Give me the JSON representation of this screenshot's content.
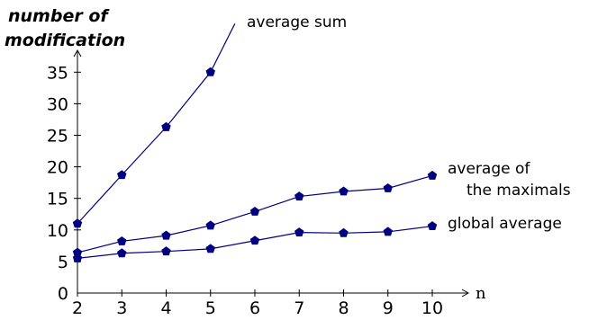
{
  "chart_data": {
    "type": "line",
    "ylabel_lines": [
      "number of",
      "modification"
    ],
    "xlabel": "n",
    "x": [
      2,
      3,
      4,
      5,
      6,
      7,
      8,
      9,
      10
    ],
    "ylim": [
      0,
      38
    ],
    "yticks": [
      0,
      5,
      10,
      15,
      20,
      25,
      30,
      35
    ],
    "grid": false,
    "line_color": "#000080",
    "marker_color": "#000080",
    "series": [
      {
        "name": "average sum",
        "label_lines": [
          "average sum"
        ],
        "x": [
          2,
          3,
          4,
          5
        ],
        "values": [
          11.0,
          18.7,
          26.3,
          35.0
        ],
        "extends_to": [
          5.55,
          42.7
        ]
      },
      {
        "name": "average of the maximals",
        "label_lines": [
          "average of",
          "the maximals"
        ],
        "x": [
          2,
          3,
          4,
          5,
          6,
          7,
          8,
          9,
          10
        ],
        "values": [
          6.4,
          8.2,
          9.1,
          10.7,
          12.9,
          15.3,
          16.1,
          16.6,
          18.6
        ]
      },
      {
        "name": "global average",
        "label_lines": [
          "global average"
        ],
        "x": [
          2,
          3,
          4,
          5,
          6,
          7,
          8,
          9,
          10
        ],
        "values": [
          5.5,
          6.3,
          6.6,
          7.0,
          8.3,
          9.6,
          9.5,
          9.7,
          10.6
        ]
      }
    ]
  }
}
